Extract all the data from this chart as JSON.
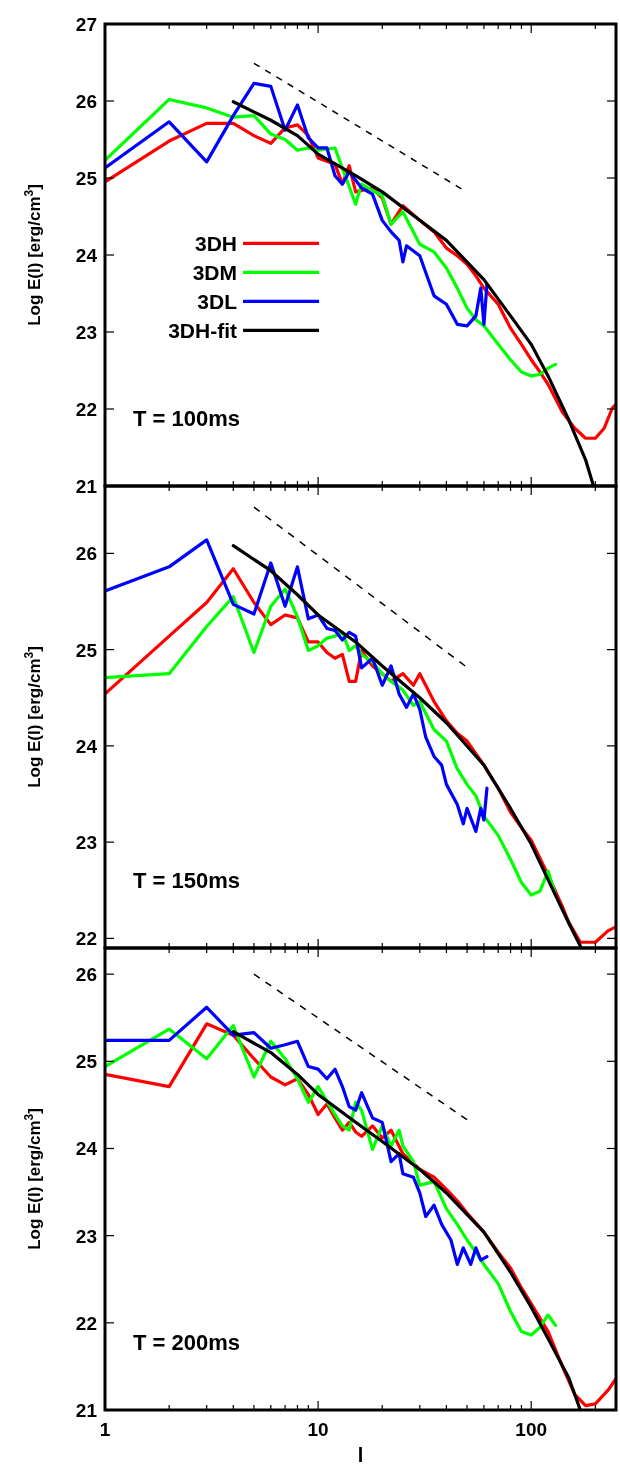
{
  "chart_data": [
    {
      "type": "line",
      "ylabel": "Log E(l) [erg/cm$^{3}$]",
      "annotations": [
        "T = 100ms"
      ],
      "log": "x",
      "legend": "left",
      "tick_labels": "y",
      "xlim": [
        1,
        250
      ],
      "ylim": [
        21,
        27
      ],
      "xticks": [
        1,
        {
          "value": 2,
          "label": null
        },
        {
          "value": 3,
          "label": null
        },
        {
          "value": 4,
          "label": null
        },
        {
          "value": 5,
          "label": null
        },
        {
          "value": 6,
          "label": null
        },
        {
          "value": 7,
          "label": null
        },
        {
          "value": 8,
          "label": null
        },
        {
          "value": 9,
          "label": null
        },
        10,
        {
          "value": 20,
          "label": null
        },
        {
          "value": 30,
          "label": null
        },
        {
          "value": 40,
          "label": null
        },
        {
          "value": 50,
          "label": null
        },
        {
          "value": 60,
          "label": null
        },
        {
          "value": 70,
          "label": null
        },
        {
          "value": 80,
          "label": null
        },
        {
          "value": 90,
          "label": null
        },
        100,
        {
          "value": 200,
          "label": null
        }
      ],
      "yticks": [
        21,
        22,
        23,
        24,
        25,
        26,
        27
      ],
      "series": [
        {
          "name": "3DH",
          "color": "#ff0000",
          "x": [
            1,
            2,
            3,
            4,
            5,
            6,
            7,
            8,
            9,
            10,
            12,
            13,
            14,
            15,
            18,
            20,
            22,
            25,
            30,
            35,
            40,
            45,
            50,
            55,
            60,
            70,
            80,
            90,
            100,
            110,
            120,
            140,
            160,
            180,
            200,
            220,
            240,
            250
          ],
          "values": [
            24.95,
            25.48,
            25.71,
            25.71,
            25.55,
            25.45,
            25.65,
            25.69,
            25.55,
            25.26,
            25.18,
            24.92,
            25.16,
            24.82,
            24.87,
            24.74,
            24.4,
            24.64,
            24.45,
            24.3,
            24.09,
            23.99,
            23.88,
            23.73,
            23.57,
            23.36,
            23.05,
            22.84,
            22.64,
            22.48,
            22.32,
            21.96,
            21.75,
            21.62,
            21.62,
            21.75,
            22.01,
            22.06
          ]
        },
        {
          "name": "3DM",
          "color": "#00ff00",
          "x": [
            1,
            2,
            3,
            4,
            5,
            6,
            7,
            8,
            9,
            10,
            12,
            13,
            15,
            16,
            18,
            20,
            22,
            25,
            30,
            35,
            40,
            45,
            50,
            55,
            60,
            70,
            80,
            90,
            100,
            110,
            120,
            130
          ],
          "values": [
            25.23,
            26.02,
            25.91,
            25.79,
            25.81,
            25.57,
            25.5,
            25.36,
            25.39,
            25.36,
            25.39,
            25.13,
            24.66,
            24.92,
            24.84,
            24.77,
            24.4,
            24.56,
            24.14,
            24.04,
            23.83,
            23.57,
            23.31,
            23.16,
            23.08,
            22.84,
            22.64,
            22.48,
            22.43,
            22.45,
            22.53,
            22.58
          ]
        },
        {
          "name": "3DL",
          "color": "#0000ff",
          "x": [
            1,
            2,
            3,
            4,
            5,
            6,
            7,
            8,
            9,
            10,
            11,
            12,
            13,
            14,
            16,
            18,
            20,
            22,
            24,
            25,
            26,
            30,
            35,
            40,
            45,
            50,
            55,
            58,
            60,
            62
          ],
          "values": [
            25.13,
            25.73,
            25.21,
            25.81,
            26.23,
            26.19,
            25.62,
            25.95,
            25.52,
            25.39,
            25.39,
            25.03,
            24.92,
            25.08,
            24.87,
            24.79,
            24.45,
            24.3,
            24.19,
            23.91,
            24.12,
            23.99,
            23.47,
            23.36,
            23.1,
            23.08,
            23.21,
            23.57,
            23.1,
            23.62
          ]
        },
        {
          "name": "3DH-fit",
          "color": "#000000",
          "x": [
            4,
            6,
            8,
            10,
            15,
            20,
            30,
            40,
            60,
            80,
            100,
            120,
            150,
            180,
            196
          ],
          "values": [
            25.99,
            25.75,
            25.55,
            25.31,
            25.03,
            24.82,
            24.45,
            24.19,
            23.68,
            23.21,
            22.84,
            22.43,
            21.86,
            21.34,
            21.0
          ]
        },
        {
          "type": "line",
          "color": "#000000",
          "line_style": "dashed",
          "x": [
            5,
            47
          ],
          "values": [
            26.49,
            24.86
          ]
        }
      ]
    },
    {
      "type": "line",
      "ylabel": "Log E(l) [erg/cm$^{3}$]",
      "annotations": [
        "T = 150ms"
      ],
      "log": "x",
      "tick_labels": "y",
      "xlim": [
        1,
        250
      ],
      "ylim": [
        21.9,
        26.7
      ],
      "xticks": [
        1,
        {
          "value": 2,
          "label": null
        },
        {
          "value": 3,
          "label": null
        },
        {
          "value": 4,
          "label": null
        },
        {
          "value": 5,
          "label": null
        },
        {
          "value": 6,
          "label": null
        },
        {
          "value": 7,
          "label": null
        },
        {
          "value": 8,
          "label": null
        },
        {
          "value": 9,
          "label": null
        },
        10,
        {
          "value": 20,
          "label": null
        },
        {
          "value": 30,
          "label": null
        },
        {
          "value": 40,
          "label": null
        },
        {
          "value": 50,
          "label": null
        },
        {
          "value": 60,
          "label": null
        },
        {
          "value": 70,
          "label": null
        },
        {
          "value": 80,
          "label": null
        },
        {
          "value": 90,
          "label": null
        },
        100,
        {
          "value": 200,
          "label": null
        }
      ],
      "yticks": [
        22,
        23,
        24,
        25,
        26
      ],
      "series": [
        {
          "color": "#ff0000",
          "x": [
            1,
            2,
            3,
            4,
            5,
            6,
            7,
            8,
            9,
            10,
            11,
            12,
            13,
            14,
            15,
            16,
            18,
            20,
            22,
            25,
            28,
            30,
            35,
            40,
            45,
            50,
            60,
            70,
            80,
            90,
            100,
            120,
            140,
            150,
            170,
            200,
            230,
            250
          ],
          "values": [
            24.54,
            25.14,
            25.49,
            25.84,
            25.49,
            25.26,
            25.36,
            25.33,
            25.08,
            25.08,
            24.97,
            24.91,
            24.95,
            24.67,
            24.67,
            24.99,
            24.83,
            24.75,
            24.67,
            24.75,
            24.63,
            24.75,
            24.46,
            24.26,
            24.13,
            24.05,
            23.8,
            23.56,
            23.31,
            23.15,
            23.02,
            22.66,
            22.33,
            22.17,
            21.96,
            21.96,
            22.08,
            22.12
          ]
        },
        {
          "color": "#00ff00",
          "x": [
            1,
            2,
            3,
            4,
            5,
            6,
            7,
            8,
            9,
            10,
            11,
            12,
            13,
            14,
            15,
            16,
            18,
            20,
            22,
            25,
            28,
            30,
            35,
            40,
            45,
            50,
            55,
            60,
            70,
            80,
            90,
            100,
            110,
            120,
            130
          ],
          "values": [
            24.71,
            24.75,
            25.24,
            25.55,
            24.97,
            25.45,
            25.63,
            25.34,
            24.99,
            25.04,
            25.12,
            25.14,
            25.18,
            24.99,
            25.04,
            24.95,
            24.87,
            24.75,
            24.67,
            24.58,
            24.42,
            24.46,
            24.17,
            24.05,
            23.76,
            23.6,
            23.48,
            23.27,
            23.07,
            22.82,
            22.58,
            22.45,
            22.49,
            22.7,
            22.45
          ]
        },
        {
          "color": "#0000ff",
          "x": [
            1,
            2,
            3,
            4,
            5,
            6,
            7,
            8,
            9,
            10,
            11,
            12,
            13,
            14,
            15,
            16,
            18,
            20,
            22,
            24,
            26,
            28,
            30,
            32,
            35,
            38,
            40,
            45,
            48,
            50,
            55,
            58,
            60,
            62
          ],
          "values": [
            25.61,
            25.86,
            26.14,
            25.47,
            25.37,
            25.9,
            25.45,
            25.86,
            25.32,
            25.36,
            25.22,
            25.2,
            25.1,
            25.18,
            25.14,
            24.81,
            24.91,
            24.63,
            24.83,
            24.54,
            24.4,
            24.54,
            24.38,
            24.09,
            23.89,
            23.8,
            23.6,
            23.39,
            23.19,
            23.35,
            23.11,
            23.35,
            23.23,
            23.56
          ]
        },
        {
          "color": "#000000",
          "x": [
            4,
            6,
            8,
            10,
            15,
            20,
            30,
            40,
            60,
            80,
            100,
            120,
            150,
            170
          ],
          "values": [
            26.08,
            25.82,
            25.57,
            25.36,
            25.08,
            24.83,
            24.5,
            24.24,
            23.8,
            23.35,
            22.98,
            22.61,
            22.16,
            21.92
          ]
        },
        {
          "type": "line",
          "color": "#000000",
          "line_style": "dashed",
          "x": [
            5,
            49
          ],
          "values": [
            26.48,
            24.83
          ]
        }
      ]
    },
    {
      "type": "line",
      "ylabel": "Log E(l) [erg/cm$^{3}$]",
      "xlabel": "l",
      "annotations": [
        "T = 200ms"
      ],
      "log": "x",
      "xlim": [
        1,
        250
      ],
      "ylim": [
        21,
        26.3
      ],
      "xticks": [
        1,
        {
          "value": 2,
          "label": null
        },
        {
          "value": 3,
          "label": null
        },
        {
          "value": 4,
          "label": null
        },
        {
          "value": 5,
          "label": null
        },
        {
          "value": 6,
          "label": null
        },
        {
          "value": 7,
          "label": null
        },
        {
          "value": 8,
          "label": null
        },
        {
          "value": 9,
          "label": null
        },
        10,
        {
          "value": 20,
          "label": null
        },
        {
          "value": 30,
          "label": null
        },
        {
          "value": 40,
          "label": null
        },
        {
          "value": 50,
          "label": null
        },
        {
          "value": 60,
          "label": null
        },
        {
          "value": 70,
          "label": null
        },
        {
          "value": 80,
          "label": null
        },
        {
          "value": 90,
          "label": null
        },
        100,
        {
          "value": 200,
          "label": null
        }
      ],
      "yticks": [
        21,
        22,
        23,
        24,
        25,
        26
      ],
      "series": [
        {
          "color": "#ff0000",
          "x": [
            1,
            2,
            3,
            4,
            5,
            6,
            7,
            8,
            9,
            10,
            11,
            12,
            13,
            14,
            15,
            16,
            18,
            20,
            22,
            25,
            30,
            35,
            40,
            45,
            50,
            60,
            70,
            80,
            90,
            100,
            120,
            140,
            160,
            180,
            200,
            230,
            250
          ],
          "values": [
            24.85,
            24.71,
            25.43,
            25.3,
            25.03,
            24.82,
            24.73,
            24.8,
            24.62,
            24.39,
            24.51,
            24.35,
            24.21,
            24.3,
            24.19,
            24.14,
            24.26,
            24.12,
            24.21,
            23.94,
            23.76,
            23.67,
            23.53,
            23.4,
            23.26,
            23.04,
            22.81,
            22.63,
            22.4,
            22.22,
            21.9,
            21.5,
            21.18,
            21.05,
            21.07,
            21.23,
            21.36
          ]
        },
        {
          "color": "#00ff00",
          "x": [
            1,
            2,
            3,
            4,
            5,
            6,
            7,
            8,
            9,
            10,
            12,
            13,
            14,
            15,
            16,
            18,
            20,
            22,
            24,
            25,
            28,
            30,
            35,
            40,
            45,
            50,
            55,
            60,
            70,
            80,
            90,
            100,
            110,
            120,
            130
          ],
          "values": [
            24.94,
            25.37,
            25.03,
            25.41,
            24.82,
            25.23,
            25.03,
            24.8,
            24.53,
            24.71,
            24.39,
            24.26,
            24.21,
            24.53,
            24.44,
            23.99,
            24.26,
            24.03,
            24.21,
            24.03,
            23.85,
            23.58,
            23.62,
            23.31,
            23.13,
            22.95,
            22.81,
            22.67,
            22.45,
            22.13,
            21.9,
            21.86,
            21.95,
            22.09,
            21.97
          ]
        },
        {
          "color": "#0000ff",
          "x": [
            1,
            2,
            3,
            4,
            5,
            6,
            7,
            8,
            9,
            10,
            11,
            12,
            13,
            14,
            15,
            16,
            18,
            20,
            22,
            24,
            25,
            28,
            30,
            32,
            35,
            38,
            42,
            45,
            48,
            52,
            55,
            58,
            62
          ],
          "values": [
            25.24,
            25.24,
            25.62,
            25.3,
            25.33,
            25.15,
            25.19,
            25.23,
            24.94,
            24.91,
            24.8,
            24.91,
            24.71,
            24.48,
            24.44,
            24.64,
            24.35,
            24.3,
            23.85,
            23.94,
            23.71,
            23.67,
            23.49,
            23.22,
            23.35,
            23.13,
            22.95,
            22.67,
            22.86,
            22.67,
            22.86,
            22.72,
            22.76
          ]
        },
        {
          "color": "#000000",
          "x": [
            4,
            6,
            8,
            10,
            15,
            20,
            30,
            40,
            60,
            80,
            100,
            120,
            150,
            170
          ],
          "values": [
            25.34,
            25.1,
            24.85,
            24.62,
            24.3,
            24.08,
            23.76,
            23.49,
            23.04,
            22.58,
            22.18,
            21.82,
            21.37,
            21.0
          ]
        },
        {
          "type": "line",
          "color": "#000000",
          "line_style": "dashed",
          "x": [
            5,
            50
          ],
          "values": [
            26.0,
            24.33
          ]
        }
      ]
    }
  ]
}
